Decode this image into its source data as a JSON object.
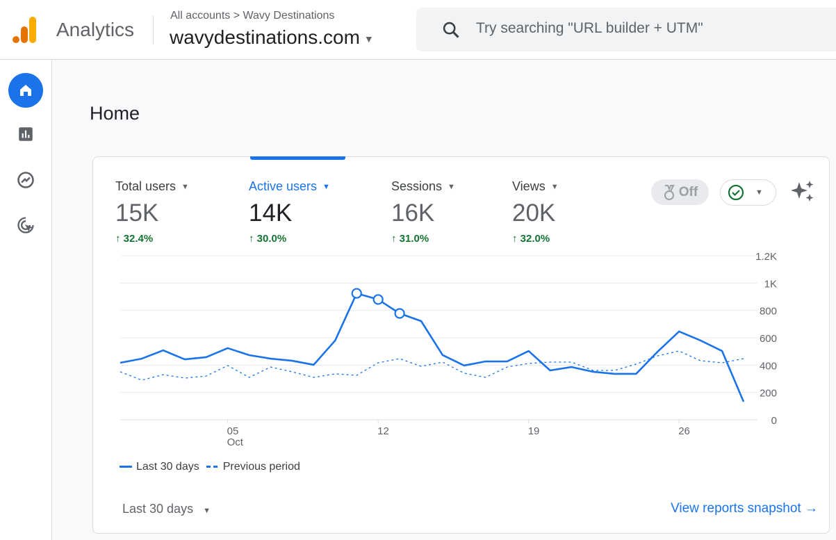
{
  "header": {
    "app_name": "Analytics",
    "breadcrumb": "All accounts > Wavy Destinations",
    "property": "wavydestinations.com",
    "search_placeholder": "Try searching \"URL builder + UTM\""
  },
  "sidebar": {
    "items": [
      {
        "icon": "home-icon",
        "active": true
      },
      {
        "icon": "reports-icon"
      },
      {
        "icon": "explore-icon"
      },
      {
        "icon": "advertising-icon"
      }
    ]
  },
  "main": {
    "title": "Home",
    "metrics": [
      {
        "label": "Total users",
        "value": "15K",
        "change": "32.4%"
      },
      {
        "label": "Active users",
        "value": "14K",
        "change": "30.0%",
        "active": true
      },
      {
        "label": "Sessions",
        "value": "16K",
        "change": "31.0%"
      },
      {
        "label": "Views",
        "value": "20K",
        "change": "32.0%"
      }
    ],
    "insights_toggle": "Off",
    "date_range": "Last 30 days",
    "snapshot_link": "View reports snapshot",
    "accent": "#1a73e8",
    "positive_color": "#137333"
  },
  "chart_data": {
    "type": "line",
    "x_ticks": [
      {
        "index": 5,
        "label": "05",
        "sub": "Oct"
      },
      {
        "index": 12,
        "label": "12"
      },
      {
        "index": 19,
        "label": "19"
      },
      {
        "index": 26,
        "label": "26"
      }
    ],
    "y_ticks": [
      "0",
      "200",
      "400",
      "600",
      "800",
      "1K",
      "1.2K"
    ],
    "ylim": [
      0,
      1200
    ],
    "grid": true,
    "legend": "bottom-left",
    "highlighted_indices": [
      11,
      12,
      13
    ],
    "series": [
      {
        "name": "Last 30 days",
        "style": "solid",
        "values": [
          417,
          447,
          508,
          442,
          458,
          524,
          473,
          447,
          432,
          402,
          580,
          925,
          880,
          778,
          722,
          473,
          397,
          427,
          427,
          503,
          361,
          386,
          351,
          336,
          336,
          498,
          646,
          580,
          503,
          132
        ]
      },
      {
        "name": "Previous period",
        "style": "dashed",
        "values": [
          351,
          290,
          330,
          305,
          320,
          397,
          310,
          386,
          351,
          310,
          336,
          325,
          417,
          447,
          391,
          422,
          341,
          310,
          386,
          412,
          422,
          422,
          361,
          361,
          407,
          468,
          503,
          432,
          417,
          447
        ]
      }
    ]
  }
}
